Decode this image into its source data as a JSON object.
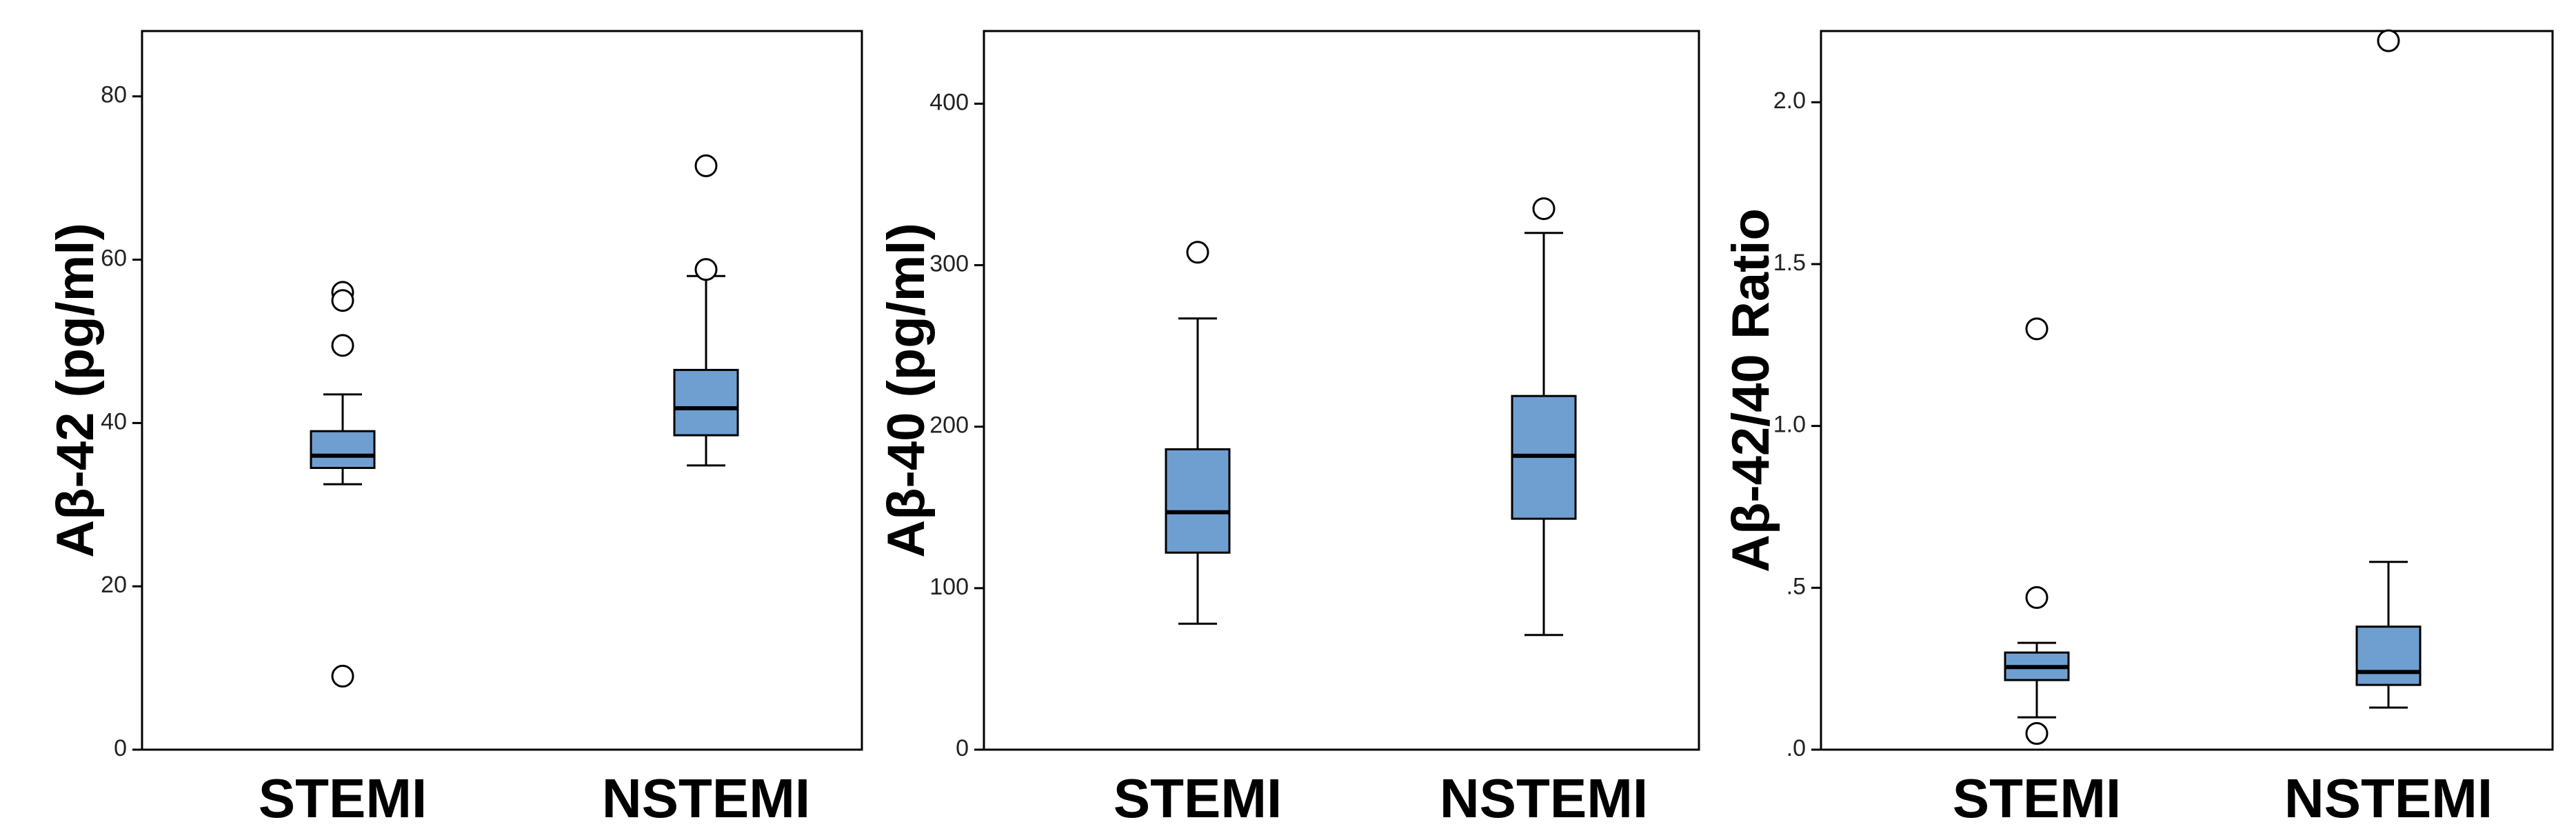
{
  "chart_data": [
    {
      "type": "box",
      "ylabel": "Aβ-42 (pg/ml)",
      "ylim": [
        0,
        88
      ],
      "yticks": [
        {
          "value": 0,
          "label": "0"
        },
        {
          "value": 20,
          "label": "20"
        },
        {
          "value": 40,
          "label": "40"
        },
        {
          "value": 60,
          "label": "60"
        },
        {
          "value": 80,
          "label": "80"
        }
      ],
      "categories": [
        "STEMI",
        "NSTEMI"
      ],
      "boxes": [
        {
          "category": "STEMI",
          "min": 32.5,
          "q1": 34.5,
          "median": 36.0,
          "q3": 39.0,
          "max": 43.5,
          "outliers": [
            56.0,
            55.0,
            49.5,
            9.0
          ]
        },
        {
          "category": "NSTEMI",
          "min": 34.8,
          "q1": 38.5,
          "median": 41.8,
          "q3": 46.5,
          "max": 58.0,
          "outliers": [
            71.5,
            58.8
          ]
        }
      ]
    },
    {
      "type": "box",
      "ylabel": "Aβ-40 (pg/ml)",
      "ylim": [
        0,
        445
      ],
      "yticks": [
        {
          "value": 0,
          "label": "0"
        },
        {
          "value": 100,
          "label": "100"
        },
        {
          "value": 200,
          "label": "200"
        },
        {
          "value": 300,
          "label": "300"
        },
        {
          "value": 400,
          "label": "400"
        }
      ],
      "categories": [
        "STEMI",
        "NSTEMI"
      ],
      "boxes": [
        {
          "category": "STEMI",
          "min": 78,
          "q1": 122,
          "median": 147,
          "q3": 186,
          "max": 267,
          "outliers": [
            308
          ]
        },
        {
          "category": "NSTEMI",
          "min": 71,
          "q1": 143,
          "median": 182,
          "q3": 219,
          "max": 320,
          "outliers": [
            335
          ]
        }
      ]
    },
    {
      "type": "box",
      "ylabel": "Aβ-42/40 Ratio",
      "ylim": [
        0,
        2.22
      ],
      "yticks": [
        {
          "value": 0,
          "label": ".0"
        },
        {
          "value": 0.5,
          "label": ".5"
        },
        {
          "value": 1.0,
          "label": "1.0"
        },
        {
          "value": 1.5,
          "label": "1.5"
        },
        {
          "value": 2.0,
          "label": "2.0"
        }
      ],
      "categories": [
        "STEMI",
        "NSTEMI"
      ],
      "boxes": [
        {
          "category": "STEMI",
          "min": 0.1,
          "q1": 0.215,
          "median": 0.255,
          "q3": 0.3,
          "max": 0.33,
          "outliers": [
            1.3,
            0.47,
            0.05
          ]
        },
        {
          "category": "NSTEMI",
          "min": 0.13,
          "q1": 0.2,
          "median": 0.24,
          "q3": 0.38,
          "max": 0.58,
          "outliers": [
            2.19
          ]
        }
      ]
    }
  ]
}
